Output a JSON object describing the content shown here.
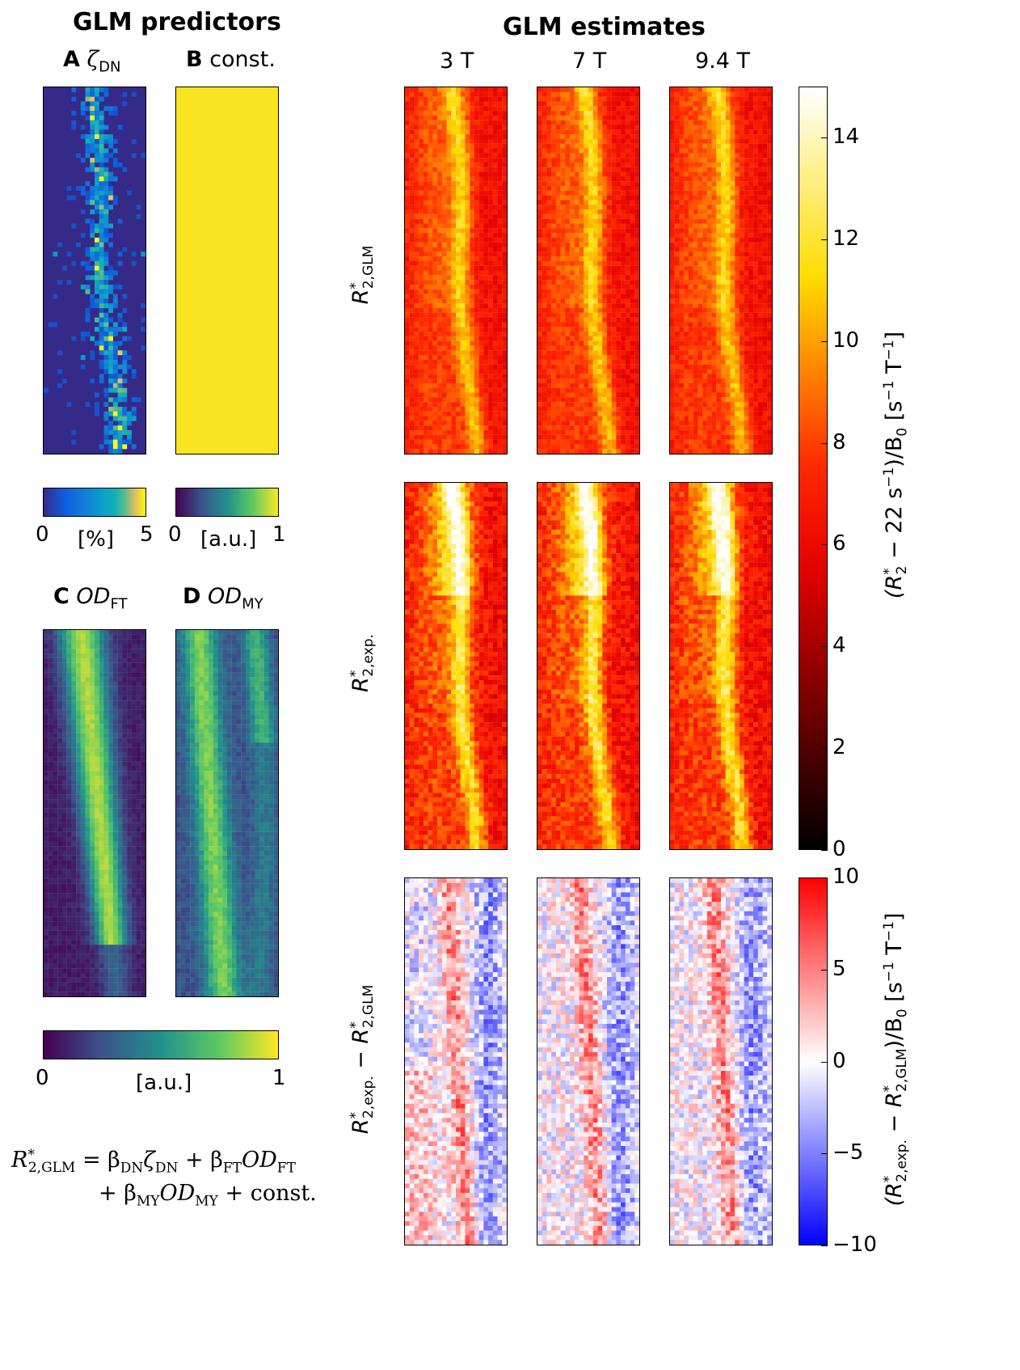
{
  "left": {
    "title": "GLM predictors",
    "panelA": {
      "letter": "A",
      "symbol": "ζ",
      "sub": "DN"
    },
    "panelB": {
      "letter": "B",
      "text": "const."
    },
    "panelC": {
      "letter": "C",
      "symbol": "OD",
      "sub": "FT"
    },
    "panelD": {
      "letter": "D",
      "symbol": "OD",
      "sub": "MY"
    },
    "cbarA": {
      "min": "0",
      "unit": "[%]",
      "max": "5",
      "colormap": "parula"
    },
    "cbarB": {
      "min": "0",
      "unit": "[a.u.]",
      "max": "1",
      "colormap": "viridis"
    },
    "cbarCD": {
      "min": "0",
      "unit": "[a.u.]",
      "max": "1",
      "colormap": "viridis"
    },
    "equation": {
      "line1_lhs": "R",
      "line1_lhs_sup": "*",
      "line1_lhs_sub": "2,GLM",
      "line1_rhs": "= β",
      "beta_dn_sub": "DN",
      "zeta": "ζ",
      "zeta_sub": "DN",
      "plus1": " + β",
      "beta_ft_sub": "FT",
      "od1": "OD",
      "od1_sub": "FT",
      "line2_plus": "+ β",
      "beta_my_sub": "MY",
      "od2": "OD",
      "od2_sub": "MY",
      "line2_tail": " + const."
    }
  },
  "right": {
    "title": "GLM estimates",
    "columns": [
      "3 T",
      "7 T",
      "9.4 T"
    ],
    "rows": [
      {
        "label": "R",
        "sup": "*",
        "sub": "2,GLM"
      },
      {
        "label": "R",
        "sup": "*",
        "sub": "2,exp."
      },
      {
        "label": "R*2,exp. − R*2,GLM",
        "a": "R",
        "a_sub": "2,exp.",
        "minus": " − ",
        "b": "R",
        "b_sub": "2,GLM",
        "sup": "*"
      }
    ],
    "cbarTop": {
      "colormap": "hot",
      "ticks": [
        "0",
        "2",
        "4",
        "6",
        "8",
        "10",
        "12",
        "14"
      ],
      "range": [
        0,
        15
      ],
      "label": "(R*2 − 22 s−1)/B0 [s−1 T−1]",
      "label_parts": {
        "open": "(R",
        "sup": "*",
        "sub": "2",
        "mid": " − 22 s",
        "exp1": "−1",
        "close": ")/B",
        "b0sub": "0",
        "unit": " [s",
        "exp2": "−1",
        "unit2": " T",
        "exp3": "−1",
        "end": "]"
      }
    },
    "cbarBottom": {
      "colormap": "bwr",
      "ticks": [
        "−10",
        "−5",
        "0",
        "5",
        "10"
      ],
      "range": [
        -10,
        10
      ],
      "label": "(R*2,exp. − R*2,GLM)/B0 [s−1 T−1]",
      "label_parts": {
        "open": "(R",
        "sup": "*",
        "sub1": "2,exp.",
        "mid": " − R",
        "sub2": "2,GLM",
        "close": ")/B",
        "b0sub": "0",
        "unit": " [s",
        "exp2": "−1",
        "unit2": " T",
        "exp3": "−1",
        "end": "]"
      }
    }
  }
}
